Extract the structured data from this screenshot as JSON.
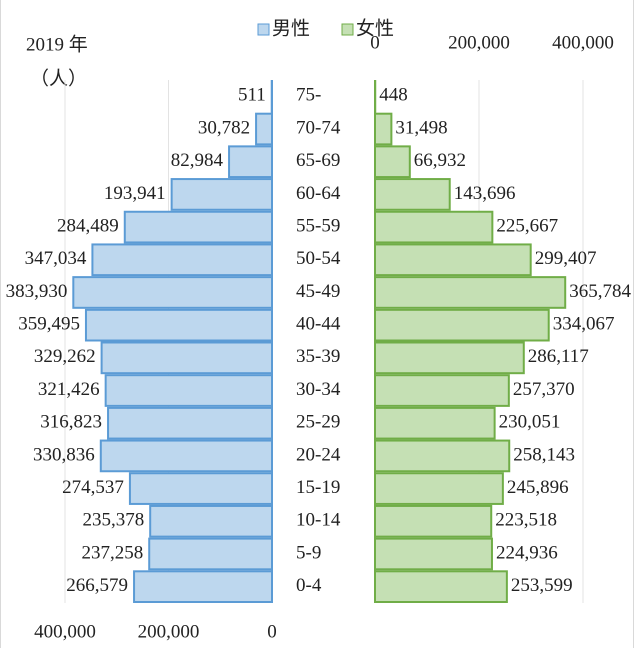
{
  "chart_data": {
    "type": "pyramid",
    "title": "2019 年",
    "y_label": "（人）",
    "categories": [
      "75-",
      "70-74",
      "65-69",
      "60-64",
      "55-59",
      "50-54",
      "45-49",
      "40-44",
      "35-39",
      "30-34",
      "25-29",
      "20-24",
      "15-19",
      "10-14",
      "5-9",
      "0-4"
    ],
    "series": [
      {
        "name": "男性",
        "color": "#bdd7ee",
        "edge": "#5b9bd5",
        "values": [
          511,
          30782,
          82984,
          193941,
          284489,
          347034,
          383930,
          359495,
          329262,
          321426,
          316823,
          330836,
          274537,
          235378,
          237258,
          266579
        ],
        "value_labels": [
          "511",
          "30,782",
          "82,984",
          "193,941",
          "284,489",
          "347,034",
          "383,930",
          "359,495",
          "329,262",
          "321,426",
          "316,823",
          "330,836",
          "274,537",
          "235,378",
          "237,258",
          "266,579"
        ]
      },
      {
        "name": "女性",
        "color": "#c5e0b4",
        "edge": "#70ad47",
        "axis": "x2",
        "values": [
          448,
          31498,
          66932,
          143696,
          225667,
          299407,
          365784,
          334067,
          286117,
          257370,
          230051,
          258143,
          245896,
          223518,
          224936,
          253599
        ],
        "value_labels": [
          "448",
          "31,498",
          "66,932",
          "143,696",
          "225,667",
          "299,407",
          "365,784",
          "334,067",
          "286,117",
          "257,370",
          "230,051",
          "258,143",
          "245,896",
          "223,518",
          "224,936",
          "253,599"
        ]
      }
    ],
    "xlim": [
      0,
      400000
    ],
    "xticks": [
      {
        "value": 400000,
        "label": "400,000"
      },
      {
        "value": 200000,
        "label": "200,000"
      },
      0
    ],
    "x2lim": [
      0,
      400000
    ],
    "x2ticks": [
      0,
      {
        "value": 200000,
        "label": "200,000"
      },
      {
        "value": 400000,
        "label": "400,000"
      }
    ],
    "grid": true
  }
}
